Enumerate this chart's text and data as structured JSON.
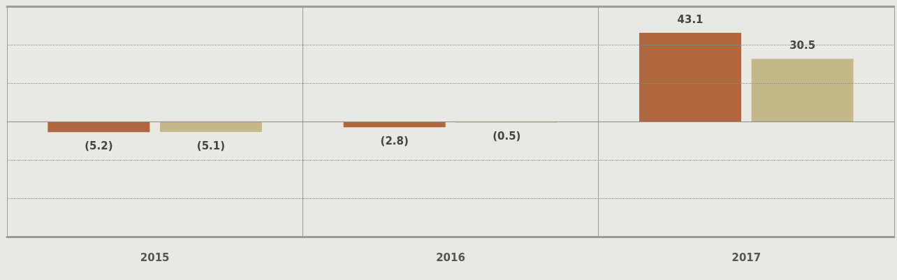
{
  "chart_data": {
    "type": "bar",
    "categories": [
      "2015",
      "2016",
      "2017"
    ],
    "series": [
      {
        "color": "#b0663f",
        "values": [
          -5.2,
          -2.8,
          43.1
        ],
        "value_labels": [
          "(5.2)",
          "(2.8)",
          "43.1"
        ]
      },
      {
        "color": "#c5b88a",
        "values": [
          -5.1,
          -0.5,
          30.5
        ],
        "value_labels": [
          "(5.1)",
          "(0.5)",
          "30.5"
        ]
      }
    ],
    "ylim": [
      -56,
      56
    ],
    "yticks": [
      {
        "value": -37.3,
        "label": null
      },
      {
        "value": -18.65,
        "label": null
      },
      {
        "value": 0,
        "label": null
      },
      {
        "value": 18.65,
        "label": null
      },
      {
        "value": 37.3,
        "label": null
      }
    ],
    "grid": true,
    "tick_labels": "x"
  }
}
